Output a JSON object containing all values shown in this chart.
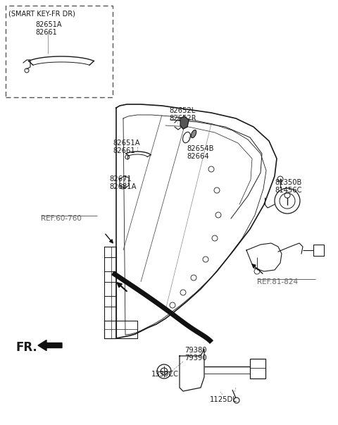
{
  "bg_color": "#ffffff",
  "fig_width": 4.8,
  "fig_height": 6.03,
  "dpi": 100,
  "labels": {
    "smart_key_box_title": "(SMART KEY-FR DR)",
    "sk_part1": "82651A",
    "sk_part2": "82661",
    "lbl_82652L": "82652L",
    "lbl_82652R": "82652R",
    "lbl_82651A": "82651A",
    "lbl_82661": "82661",
    "lbl_82654B": "82654B",
    "lbl_82664": "82664",
    "lbl_82671": "82671",
    "lbl_82681A": "82681A",
    "lbl_ref60": "REF.60-760",
    "lbl_81350B": "81350B",
    "lbl_81456C": "81456C",
    "lbl_ref81": "REF.81-824",
    "lbl_79380": "79380",
    "lbl_79390": "79390",
    "lbl_1339CC": "1339CC",
    "lbl_1125DL": "1125DL",
    "lbl_fr": "FR."
  },
  "colors": {
    "line": "#1a1a1a",
    "text": "#1a1a1a",
    "ref_text": "#666666",
    "black_fill": "#111111"
  }
}
